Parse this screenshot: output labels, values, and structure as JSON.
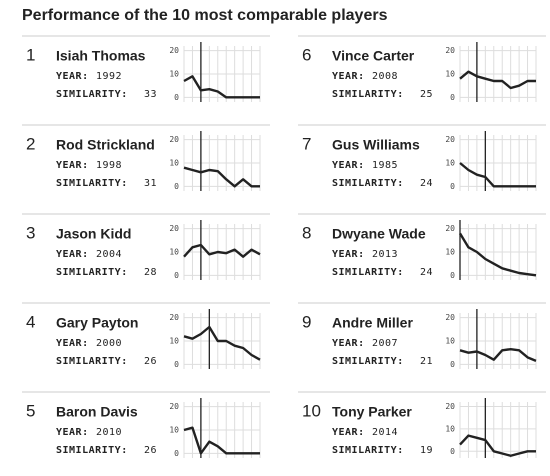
{
  "title": "Performance of the 10 most comparable players",
  "labels": {
    "year": "YEAR:",
    "similarity": "SIMILARITY:"
  },
  "chart_data": [
    {
      "type": "line",
      "rank": 1,
      "name": "Isiah Thomas",
      "year": 1992,
      "similarity": 33,
      "ylim": [
        -2,
        22
      ],
      "yticks": [
        0,
        10,
        20
      ],
      "marker": 2,
      "x": [
        0,
        1,
        2,
        3,
        4,
        5,
        6,
        7,
        8,
        9
      ],
      "values": [
        7,
        9,
        3,
        3.5,
        2.5,
        0,
        0,
        0,
        0,
        0
      ]
    },
    {
      "type": "line",
      "rank": 2,
      "name": "Rod Strickland",
      "year": 1998,
      "similarity": 31,
      "ylim": [
        -2,
        22
      ],
      "yticks": [
        0,
        10,
        20
      ],
      "marker": 2,
      "x": [
        0,
        1,
        2,
        3,
        4,
        5,
        6,
        7,
        8,
        9
      ],
      "values": [
        8,
        7,
        6,
        7,
        6.5,
        3,
        0,
        3,
        0,
        0
      ]
    },
    {
      "type": "line",
      "rank": 3,
      "name": "Jason Kidd",
      "year": 2004,
      "similarity": 28,
      "ylim": [
        -2,
        22
      ],
      "yticks": [
        0,
        10,
        20
      ],
      "marker": 2,
      "x": [
        0,
        1,
        2,
        3,
        4,
        5,
        6,
        7,
        8,
        9
      ],
      "values": [
        8,
        12,
        13,
        9,
        10,
        9.5,
        11,
        8,
        11,
        9
      ]
    },
    {
      "type": "line",
      "rank": 4,
      "name": "Gary Payton",
      "year": 2000,
      "similarity": 26,
      "ylim": [
        -2,
        22
      ],
      "yticks": [
        0,
        10,
        20
      ],
      "marker": 3,
      "x": [
        0,
        1,
        2,
        3,
        4,
        5,
        6,
        7,
        8,
        9
      ],
      "values": [
        12,
        11,
        13,
        16,
        10,
        10,
        8,
        7,
        4,
        2
      ]
    },
    {
      "type": "line",
      "rank": 5,
      "name": "Baron Davis",
      "year": 2010,
      "similarity": 26,
      "ylim": [
        -2,
        22
      ],
      "yticks": [
        0,
        10,
        20
      ],
      "marker": 2,
      "x": [
        0,
        1,
        2,
        3,
        4,
        5,
        6,
        7,
        8,
        9
      ],
      "values": [
        10,
        11,
        0,
        5,
        3,
        0,
        0,
        0,
        0,
        0
      ]
    },
    {
      "type": "line",
      "rank": 6,
      "name": "Vince Carter",
      "year": 2008,
      "similarity": 25,
      "ylim": [
        -2,
        22
      ],
      "yticks": [
        0,
        10,
        20
      ],
      "marker": 2,
      "x": [
        0,
        1,
        2,
        3,
        4,
        5,
        6,
        7,
        8,
        9
      ],
      "values": [
        8,
        11,
        9,
        8,
        7,
        7,
        4,
        5,
        7,
        7
      ]
    },
    {
      "type": "line",
      "rank": 7,
      "name": "Gus Williams",
      "year": 1985,
      "similarity": 24,
      "ylim": [
        -2,
        22
      ],
      "yticks": [
        0,
        10,
        20
      ],
      "marker": 3,
      "x": [
        0,
        1,
        2,
        3,
        4,
        5,
        6,
        7,
        8,
        9
      ],
      "values": [
        10,
        7,
        5,
        4,
        0,
        0,
        0,
        0,
        0,
        0
      ]
    },
    {
      "type": "line",
      "rank": 8,
      "name": "Dwyane Wade",
      "year": 2013,
      "similarity": 24,
      "ylim": [
        -2,
        22
      ],
      "yticks": [
        0,
        10,
        20
      ],
      "marker": 0,
      "x": [
        0,
        1,
        2,
        3,
        4,
        5,
        6,
        7,
        8,
        9
      ],
      "values": [
        18,
        12,
        10,
        7,
        5,
        3,
        2,
        1,
        0.5,
        0
      ]
    },
    {
      "type": "line",
      "rank": 9,
      "name": "Andre Miller",
      "year": 2007,
      "similarity": 21,
      "ylim": [
        -2,
        22
      ],
      "yticks": [
        0,
        10,
        20
      ],
      "marker": 2,
      "x": [
        0,
        1,
        2,
        3,
        4,
        5,
        6,
        7,
        8,
        9
      ],
      "values": [
        6,
        5,
        5.5,
        4,
        2,
        6,
        6.5,
        6,
        3,
        1.5
      ]
    },
    {
      "type": "line",
      "rank": 10,
      "name": "Tony Parker",
      "year": 2014,
      "similarity": 19,
      "ylim": [
        -3,
        22
      ],
      "yticks": [
        0,
        10,
        20
      ],
      "marker": 3,
      "x": [
        0,
        1,
        2,
        3,
        4,
        5,
        6,
        7,
        8,
        9
      ],
      "values": [
        3,
        7,
        6,
        5,
        0,
        -1,
        -2,
        -1,
        0,
        0
      ]
    }
  ]
}
